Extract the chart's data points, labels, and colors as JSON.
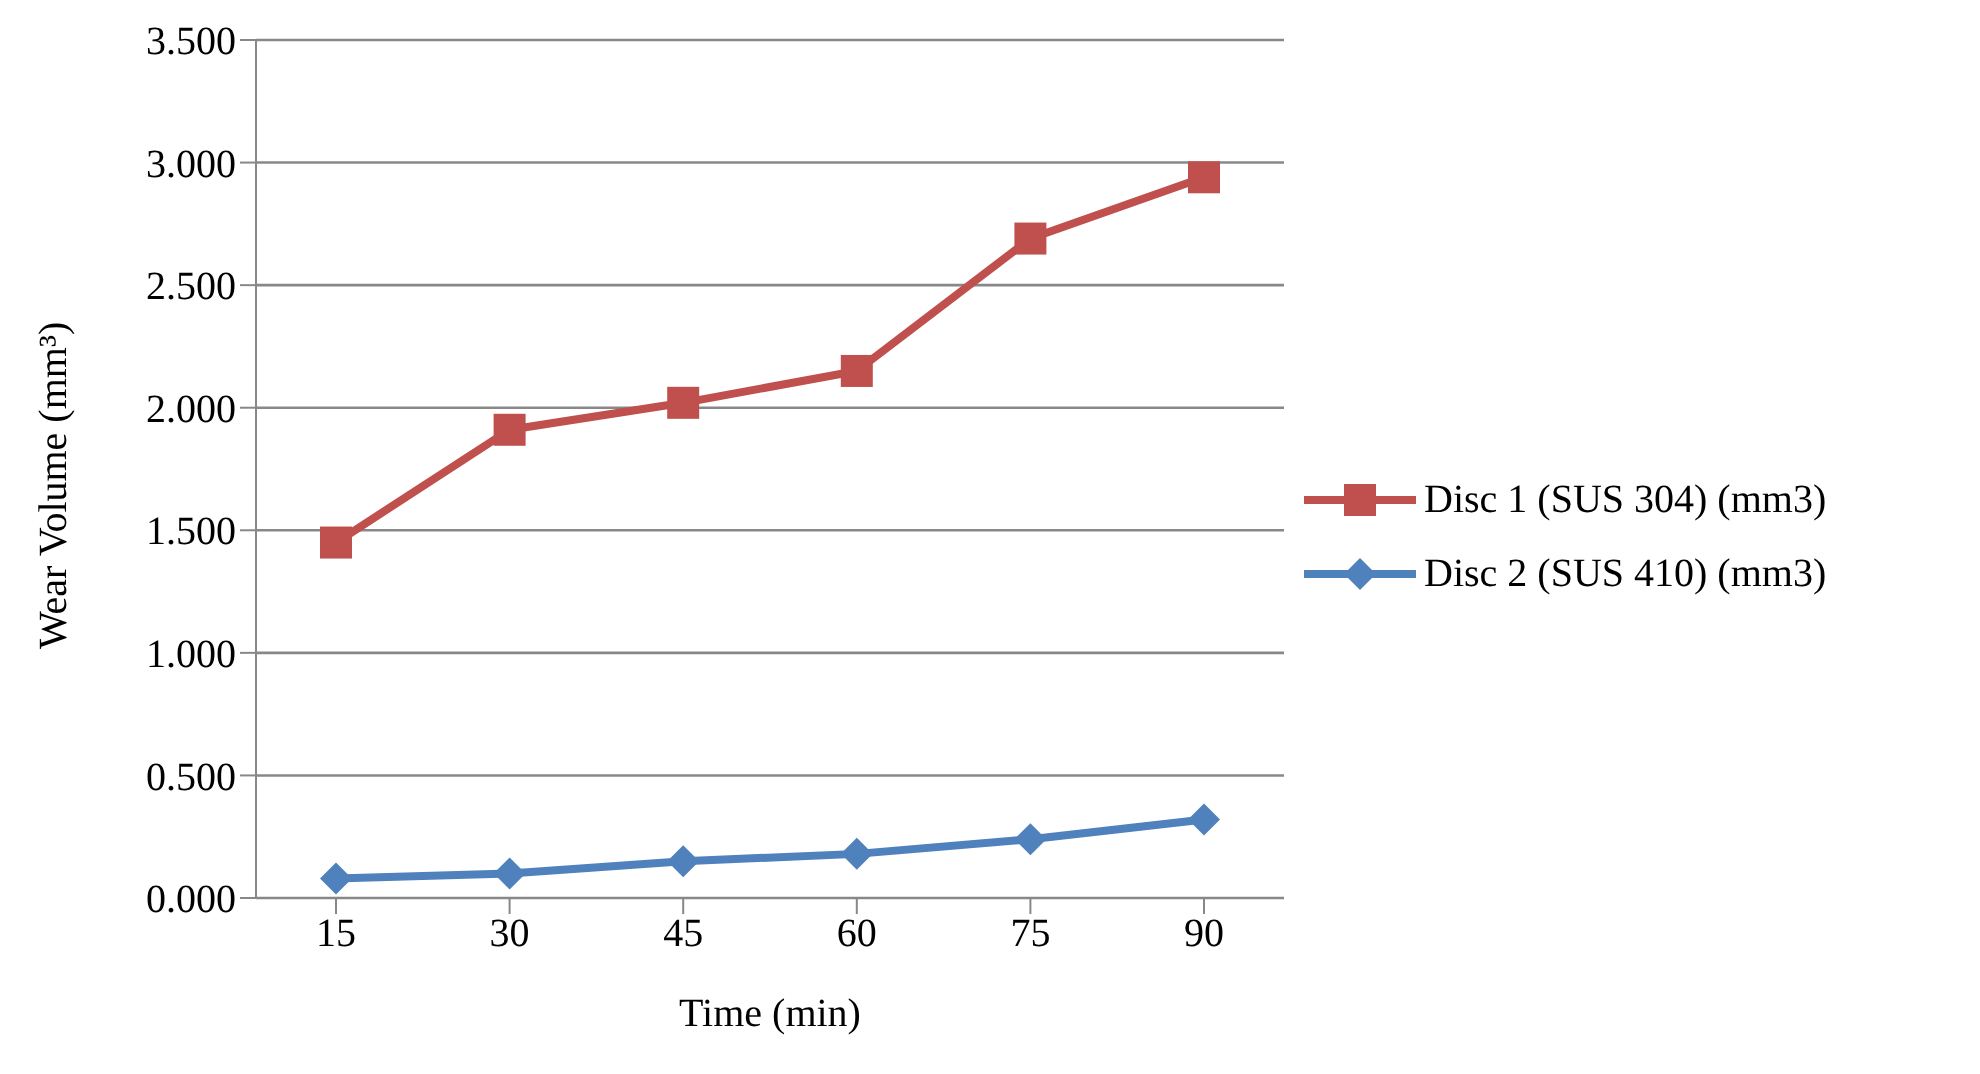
{
  "chart_data": {
    "type": "line",
    "xlabel": "Time (min)",
    "ylabel": "Wear Volume (mm³)",
    "categories": [
      "15",
      "30",
      "45",
      "60",
      "75",
      "90"
    ],
    "series": [
      {
        "name": "Disc 1 (SUS 304) (mm3)",
        "color": "#c0504d",
        "marker": "square",
        "values": [
          1.45,
          1.91,
          2.02,
          2.15,
          2.69,
          2.94
        ]
      },
      {
        "name": "Disc 2 (SUS 410) (mm3)",
        "color": "#4f81bd",
        "marker": "diamond",
        "values": [
          0.08,
          0.1,
          0.15,
          0.18,
          0.24,
          0.32
        ]
      }
    ],
    "ylim": [
      0,
      3.5
    ],
    "yticks": [
      {
        "value": 0,
        "label": "0.000"
      },
      {
        "value": 0.5,
        "label": "0.500"
      },
      {
        "value": 1,
        "label": "1.000"
      },
      {
        "value": 1.5,
        "label": "1.500"
      },
      {
        "value": 2,
        "label": "2.000"
      },
      {
        "value": 2.5,
        "label": "2.500"
      },
      {
        "value": 3,
        "label": "3.000"
      },
      {
        "value": 3.5,
        "label": "3.500"
      }
    ],
    "grid": "y",
    "legend": "right"
  }
}
